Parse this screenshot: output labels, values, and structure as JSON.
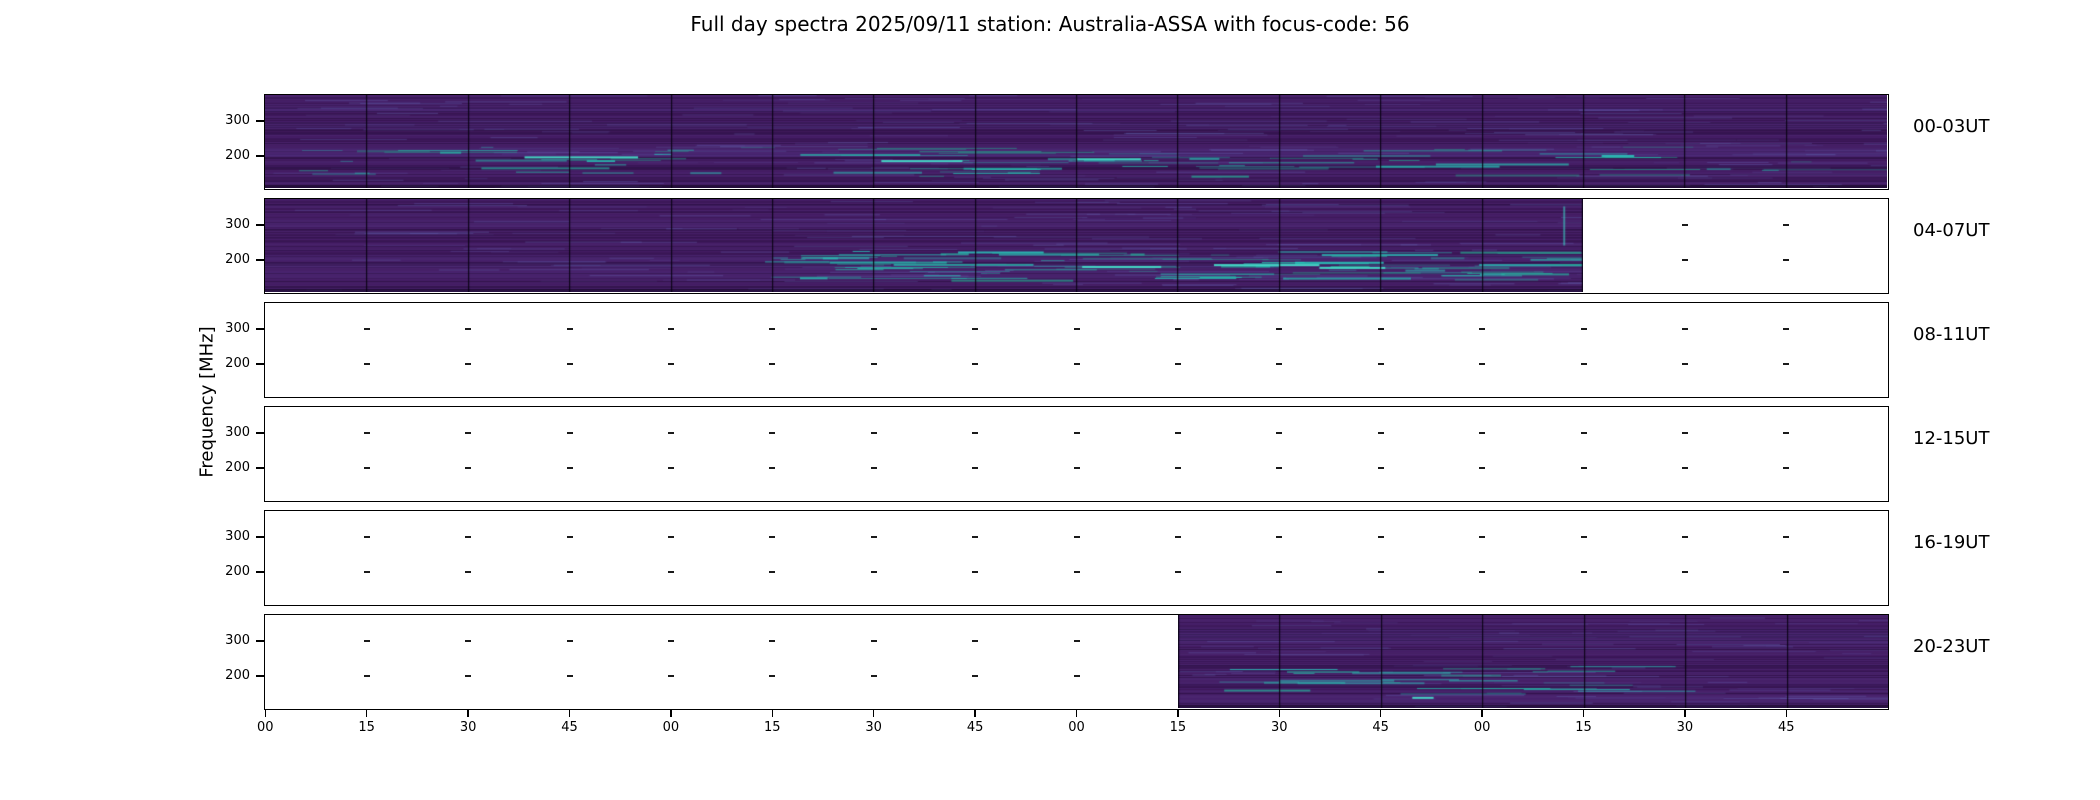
{
  "title": "Full day spectra 2025/09/11 station: Australia-ASSA with focus-code: 56",
  "ylabel": "Frequency [MHz]",
  "y_ticks": [
    "300",
    "200"
  ],
  "x_tick_labels": [
    "00",
    "15",
    "30",
    "45",
    "00",
    "15",
    "30",
    "45",
    "00",
    "15",
    "30",
    "45",
    "00",
    "15",
    "30",
    "45"
  ],
  "colors": {
    "background": "#ffffff",
    "frame": "#000000",
    "spectrogram_base": "#421a60",
    "spectrogram_teal": "#2a9d8f",
    "text": "#000000"
  },
  "panels": [
    {
      "label": "00-03UT",
      "fill_start": 0,
      "fill_end": 16,
      "texture": {
        "count": 26,
        "xmin": 0.02,
        "xmax": 0.95,
        "vstreak": false,
        "bright": [
          [
            0.16,
            0.66,
            0.07
          ],
          [
            0.38,
            0.7,
            0.05
          ],
          [
            0.5,
            0.68,
            0.04
          ]
        ]
      }
    },
    {
      "label": "04-07UT",
      "fill_start": 0,
      "fill_end": 13,
      "texture": {
        "count": 30,
        "xmin": 0.35,
        "xmax": 1.0,
        "vstreak": true,
        "bright": [
          [
            0.62,
            0.72,
            0.06
          ],
          [
            0.72,
            0.7,
            0.08
          ],
          [
            0.8,
            0.73,
            0.05
          ]
        ]
      }
    },
    {
      "label": "08-11UT",
      "fill_start": 0,
      "fill_end": 0,
      "texture": null
    },
    {
      "label": "12-15UT",
      "fill_start": 0,
      "fill_end": 0,
      "texture": null
    },
    {
      "label": "16-19UT",
      "fill_start": 0,
      "fill_end": 0,
      "texture": null
    },
    {
      "label": "20-23UT",
      "fill_start": 9,
      "fill_end": 16,
      "texture": {
        "count": 9,
        "xmin": 0.05,
        "xmax": 0.6,
        "vstreak": false,
        "bright": [
          [
            0.33,
            0.88,
            0.03
          ]
        ]
      }
    }
  ],
  "chart_data": {
    "type": "heatmap",
    "title": "Full day spectra 2025/09/11 station: Australia-ASSA with focus-code: 56",
    "station": "Australia-ASSA",
    "date": "2025/09/11",
    "focus_code": "56",
    "ylabel": "Frequency [MHz]",
    "y_tick_values": [
      300,
      200
    ],
    "x_tick_labels_minutes": [
      "00",
      "15",
      "30",
      "45",
      "00",
      "15",
      "30",
      "45",
      "00",
      "15",
      "30",
      "45",
      "00",
      "15",
      "30",
      "45"
    ],
    "rows": [
      {
        "label": "00-03UT",
        "time_span": "00:00-04:00 UT",
        "data_coverage": "00:00-04:00 (complete)"
      },
      {
        "label": "04-07UT",
        "time_span": "04:00-08:00 UT",
        "data_coverage": "04:00-07:15"
      },
      {
        "label": "08-11UT",
        "time_span": "08:00-12:00 UT",
        "data_coverage": "no data"
      },
      {
        "label": "12-15UT",
        "time_span": "12:00-16:00 UT",
        "data_coverage": "no data"
      },
      {
        "label": "16-19UT",
        "time_span": "16:00-20:00 UT",
        "data_coverage": "no data"
      },
      {
        "label": "20-23UT",
        "time_span": "20:00-24:00 UT",
        "data_coverage": "22:15-24:00"
      }
    ],
    "colormap": "viridis-like dark purple with teal emission streaks",
    "grid": "vertical lines at 15-minute file boundaries"
  }
}
